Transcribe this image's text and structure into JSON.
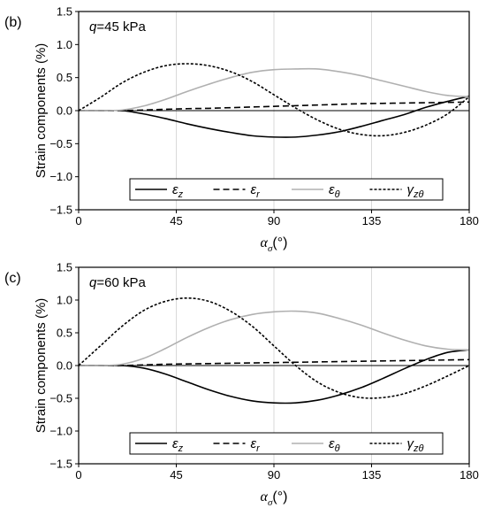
{
  "chart_data": [
    {
      "type": "line",
      "panel_label": "(b)",
      "annotation": {
        "symbol": "q",
        "text": "=45 kPa"
      },
      "ylabel": "Strain components (%)",
      "xlabel": {
        "symbol": "α",
        "subscript": "σ",
        "unit": "(°)"
      },
      "xlim": [
        0,
        180
      ],
      "ylim": [
        -1.5,
        1.5
      ],
      "x_ticks": [
        0,
        45,
        90,
        135,
        180
      ],
      "y_ticks": [
        -1.5,
        -1.0,
        -0.5,
        0.0,
        0.5,
        1.0,
        1.5
      ],
      "x_tick_labels": [
        "0",
        "45",
        "90",
        "135",
        "180"
      ],
      "y_tick_labels": [
        "−1.5",
        "−1.0",
        "−0.5",
        "0.0",
        "0.5",
        "1.0",
        "1.5"
      ],
      "grid": "vertical",
      "legend_position": "bottom",
      "x": [
        0,
        10,
        20,
        30,
        40,
        50,
        60,
        70,
        80,
        90,
        100,
        110,
        120,
        130,
        140,
        150,
        160,
        170,
        180
      ],
      "series": [
        {
          "symbol": "ε",
          "subscript": "z",
          "style": "solid",
          "color": "#000000",
          "values": [
            0.0,
            0.0,
            0.0,
            -0.05,
            -0.12,
            -0.2,
            -0.27,
            -0.33,
            -0.38,
            -0.4,
            -0.4,
            -0.37,
            -0.32,
            -0.24,
            -0.15,
            -0.06,
            0.05,
            0.14,
            0.22
          ]
        },
        {
          "symbol": "ε",
          "subscript": "r",
          "style": "dashed",
          "color": "#000000",
          "values": [
            0.0,
            0.0,
            0.0,
            0.01,
            0.02,
            0.03,
            0.035,
            0.045,
            0.055,
            0.065,
            0.075,
            0.085,
            0.095,
            0.105,
            0.11,
            0.115,
            0.12,
            0.125,
            0.13
          ]
        },
        {
          "symbol": "ε",
          "subscript": "θ",
          "style": "solid",
          "color": "#b0b0b0",
          "values": [
            0.0,
            0.0,
            0.01,
            0.07,
            0.17,
            0.29,
            0.4,
            0.5,
            0.58,
            0.62,
            0.63,
            0.63,
            0.59,
            0.53,
            0.45,
            0.37,
            0.29,
            0.23,
            0.21
          ]
        },
        {
          "symbol": "γ",
          "subscript": "zθ",
          "style": "dotted",
          "color": "#000000",
          "values": [
            0.0,
            0.2,
            0.42,
            0.58,
            0.68,
            0.71,
            0.68,
            0.59,
            0.44,
            0.24,
            0.04,
            -0.14,
            -0.28,
            -0.36,
            -0.38,
            -0.33,
            -0.22,
            -0.05,
            0.21
          ]
        }
      ]
    },
    {
      "type": "line",
      "panel_label": "(c)",
      "annotation": {
        "symbol": "q",
        "text": "=60 kPa"
      },
      "ylabel": "Strain components (%)",
      "xlabel": {
        "symbol": "α",
        "subscript": "σ",
        "unit": "(°)"
      },
      "xlim": [
        0,
        180
      ],
      "ylim": [
        -1.5,
        1.5
      ],
      "x_ticks": [
        0,
        45,
        90,
        135,
        180
      ],
      "y_ticks": [
        -1.5,
        -1.0,
        -0.5,
        0.0,
        0.5,
        1.0,
        1.5
      ],
      "x_tick_labels": [
        "0",
        "45",
        "90",
        "135",
        "180"
      ],
      "y_tick_labels": [
        "−1.5",
        "−1.0",
        "−0.5",
        "0.0",
        "0.5",
        "1.0",
        "1.5"
      ],
      "grid": "vertical",
      "legend_position": "bottom",
      "x": [
        0,
        10,
        20,
        30,
        40,
        50,
        60,
        70,
        80,
        90,
        100,
        110,
        120,
        130,
        140,
        150,
        160,
        170,
        180
      ],
      "series": [
        {
          "symbol": "ε",
          "subscript": "z",
          "style": "solid",
          "color": "#000000",
          "values": [
            0.0,
            0.0,
            0.0,
            -0.04,
            -0.13,
            -0.25,
            -0.37,
            -0.47,
            -0.54,
            -0.57,
            -0.57,
            -0.53,
            -0.45,
            -0.34,
            -0.2,
            -0.05,
            0.09,
            0.2,
            0.24
          ]
        },
        {
          "symbol": "ε",
          "subscript": "r",
          "style": "dashed",
          "color": "#000000",
          "values": [
            0.0,
            0.0,
            0.0,
            0.01,
            0.02,
            0.025,
            0.03,
            0.035,
            0.04,
            0.045,
            0.05,
            0.055,
            0.06,
            0.065,
            0.07,
            0.075,
            0.08,
            0.085,
            0.09
          ]
        },
        {
          "symbol": "ε",
          "subscript": "θ",
          "style": "solid",
          "color": "#b0b0b0",
          "values": [
            0.0,
            0.0,
            0.02,
            0.11,
            0.26,
            0.43,
            0.58,
            0.7,
            0.78,
            0.82,
            0.83,
            0.8,
            0.72,
            0.62,
            0.5,
            0.39,
            0.3,
            0.25,
            0.24
          ]
        },
        {
          "symbol": "γ",
          "subscript": "zθ",
          "style": "dotted",
          "color": "#000000",
          "values": [
            0.0,
            0.3,
            0.6,
            0.84,
            0.98,
            1.03,
            0.98,
            0.83,
            0.6,
            0.3,
            0.0,
            -0.25,
            -0.41,
            -0.49,
            -0.49,
            -0.43,
            -0.31,
            -0.16,
            0.0
          ]
        }
      ]
    }
  ]
}
